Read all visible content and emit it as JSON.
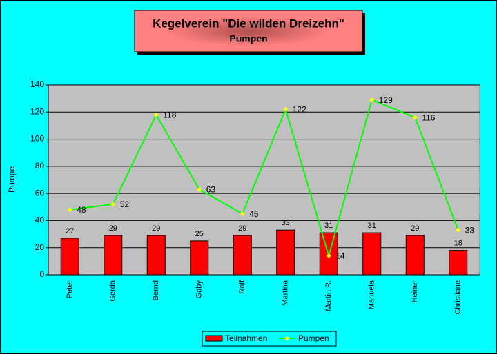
{
  "chart_data": {
    "type": "combo",
    "title": "Kegelverein \"Die wilden Dreizehn\"",
    "subtitle": "Pumpen",
    "y_label": "Pumpe",
    "categories": [
      "Peter",
      "Gerda",
      "Bernd",
      "Gaby",
      "Ralf",
      "Martina",
      "Martin R.",
      "Manuela",
      "Heiner",
      "Christiane"
    ],
    "series": [
      {
        "name": "Teilnahmen",
        "type": "bar",
        "color": "#ff0000",
        "values": [
          27,
          29,
          29,
          25,
          29,
          33,
          31,
          31,
          29,
          18
        ]
      },
      {
        "name": "Pumpen",
        "type": "line",
        "color": "#00ff00",
        "marker_color": "#ffff00",
        "values": [
          48,
          52,
          118,
          63,
          45,
          122,
          14,
          129,
          116,
          33
        ]
      }
    ],
    "ylim": [
      0,
      140
    ],
    "yticks": [
      0,
      20,
      40,
      60,
      80,
      100,
      120,
      140
    ],
    "grid": true,
    "legend": "bottom"
  }
}
